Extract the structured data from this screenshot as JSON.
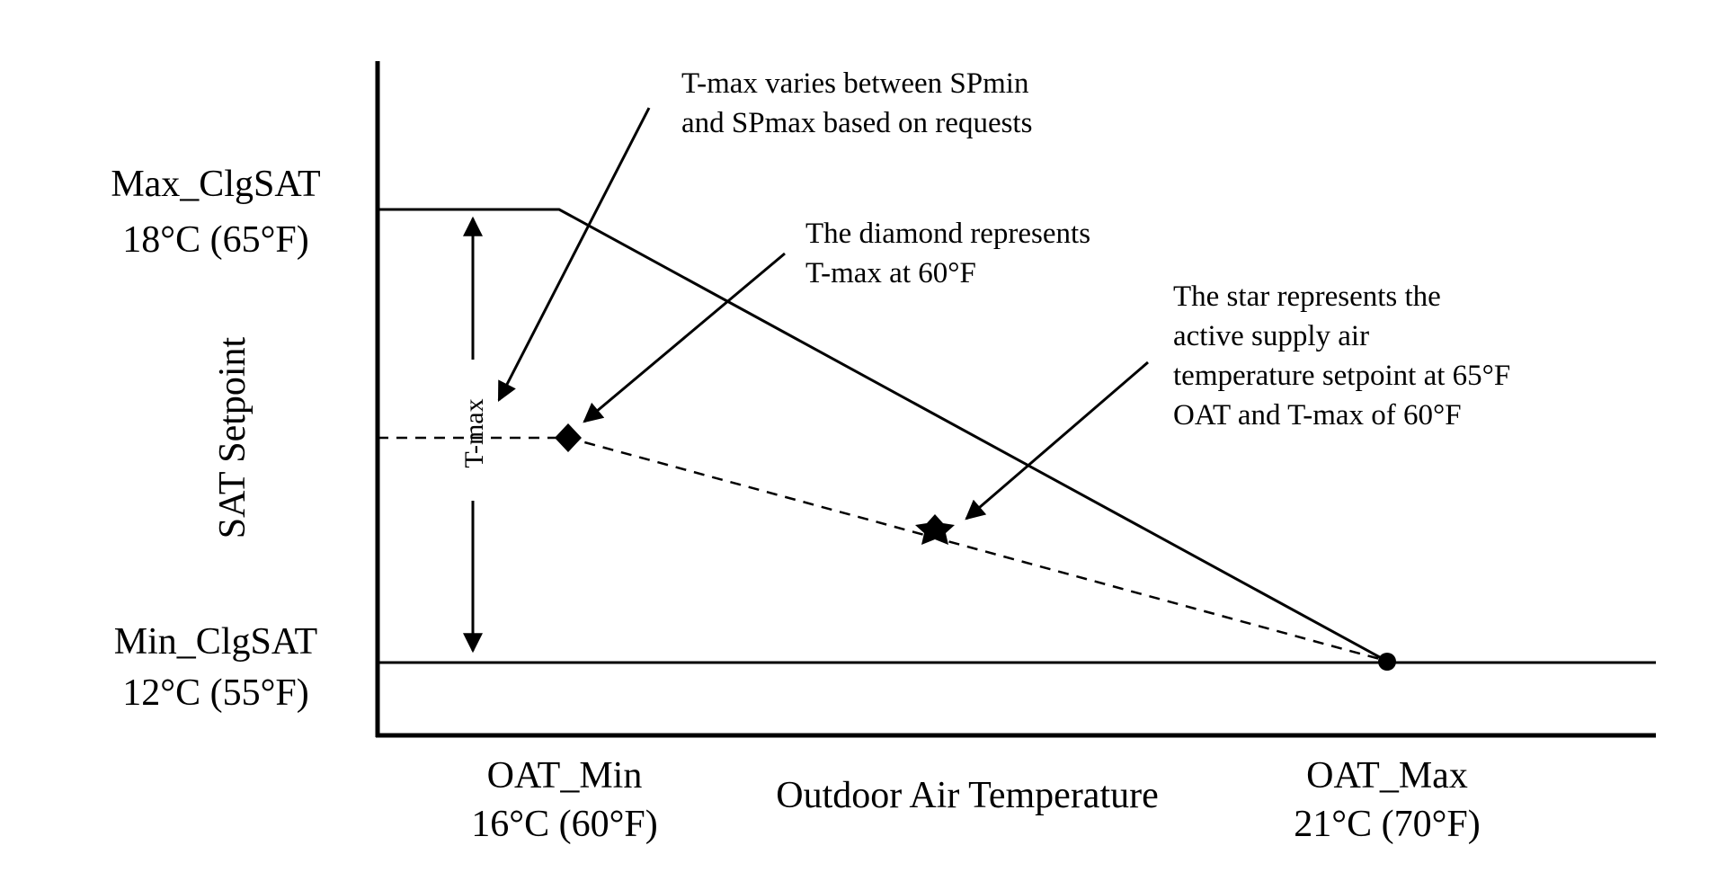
{
  "y_axis": {
    "title": "SAT Setpoint",
    "max_label": "Max_ClgSAT",
    "max_value": "18°C (65°F)",
    "min_label": "Min_ClgSAT",
    "min_value": "12°C (55°F)"
  },
  "x_axis": {
    "title": "Outdoor Air Temperature",
    "min_label": "OAT_Min",
    "min_value": "16°C (60°F)",
    "max_label": "OAT_Max",
    "max_value": "21°C (70°F)"
  },
  "dimension": {
    "label": "T-max"
  },
  "annotations": {
    "tmax_note": [
      "T-max varies between SPmin",
      "and SPmax based on requests"
    ],
    "diamond_note": [
      "The diamond represents",
      "T-max at 60°F"
    ],
    "star_note": [
      "The star represents the",
      "active supply air",
      "temperature setpoint at 65°F",
      "OAT and T-max of 60°F"
    ]
  },
  "markers": {
    "diamond": "diamond",
    "star": "star",
    "endpoint": "dot"
  }
}
